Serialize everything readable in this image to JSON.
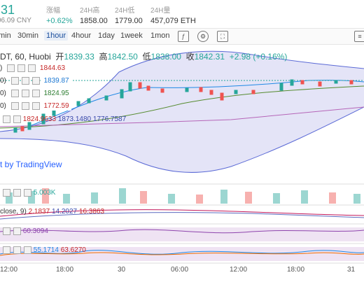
{
  "header": {
    "price": ".31",
    "cny": "96.09 CNY",
    "stats": [
      {
        "label": "涨幅",
        "value": "+0.62%"
      },
      {
        "label": "24H高",
        "value": "1858.00"
      },
      {
        "label": "24H低",
        "value": "1779.00"
      },
      {
        "label": "24H量",
        "value": "457,079 ETH"
      }
    ]
  },
  "toolbar": {
    "timeframes": [
      "min",
      "30min",
      "1hour",
      "4hour",
      "1day",
      "1week",
      "1mon"
    ],
    "active": "1hour",
    "icons": [
      "indicator-icon",
      "settings-icon",
      "fullscreen-icon",
      "menu-icon"
    ]
  },
  "chart": {
    "symbol": "DT, 60, Huobi",
    "open_label": "开",
    "open": "1839.33",
    "high_label": "高",
    "high": "1842.50",
    "low_label": "低",
    "low": "1838.00",
    "close_label": "收",
    "close": "1842.31",
    "change": "+2.98 (+0.16%)",
    "indicators": [
      {
        "prefix": ")",
        "value": "1844.63",
        "color": "#e57373"
      },
      {
        "prefix": "0)",
        "value": "1839.87",
        "color": "#1976d2"
      },
      {
        "prefix": "0)",
        "value": "1824.95",
        "color": "#2e7d32"
      },
      {
        "prefix": "0)",
        "value": "1772.59",
        "color": "#c62828"
      }
    ],
    "boll": [
      "1824.9633",
      "1873.1480",
      "1776.7587"
    ],
    "watermark": "t by TradingView",
    "volume": "5.003K",
    "macd_label": "close, 9)",
    "macd": [
      "2.1837",
      "14.2027",
      "16.3863"
    ],
    "rsi": "60.3094",
    "kd": [
      "55.1714",
      "63.6270"
    ],
    "x_labels": [
      "12:00",
      "18:00",
      "30",
      "06:00",
      "12:00",
      "18:00",
      "31"
    ]
  }
}
